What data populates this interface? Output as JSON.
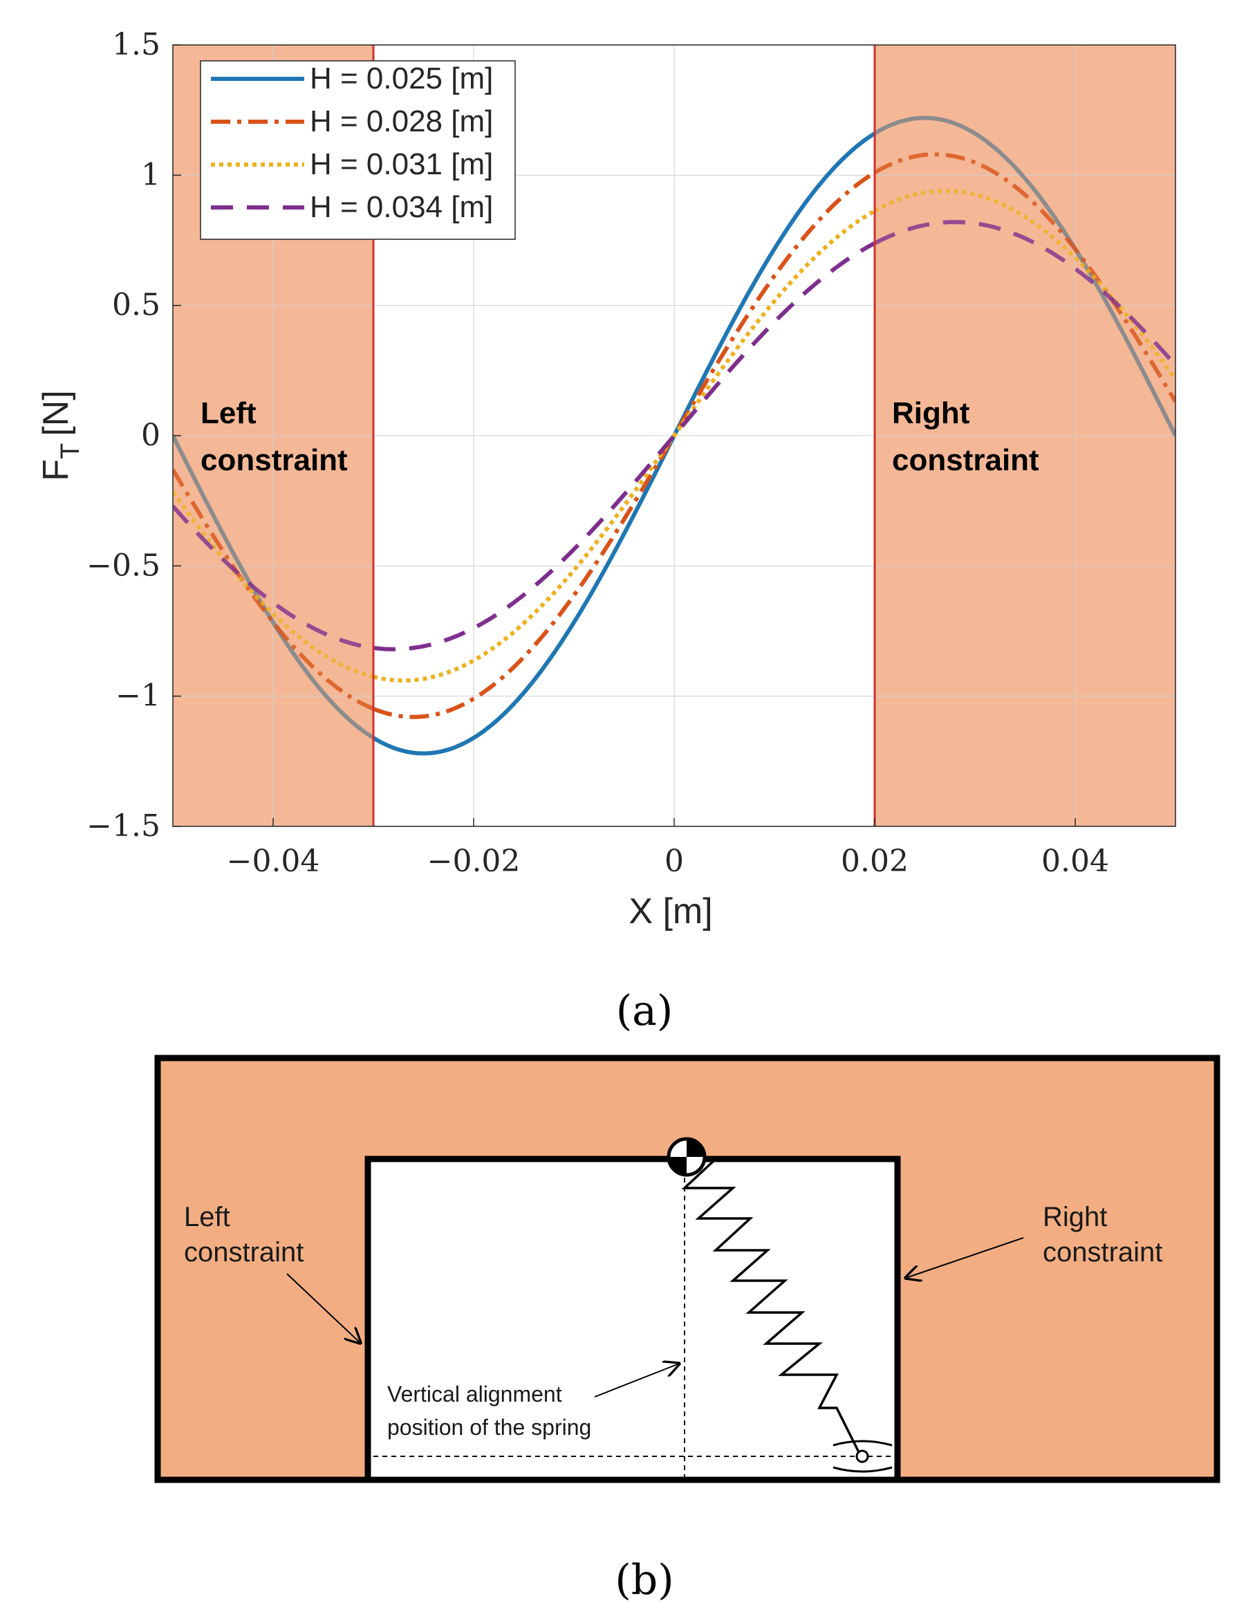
{
  "chart_data": {
    "type": "line",
    "xlabel": "X [m]",
    "ylabel_main": "F",
    "ylabel_sub": "T",
    "ylabel_unit": "[N]",
    "xlim": [
      -0.05,
      0.05
    ],
    "ylim": [
      -1.5,
      1.5
    ],
    "x_ticks": [
      -0.04,
      -0.02,
      0,
      0.02,
      0.04
    ],
    "x_tick_labels": [
      "−0.04",
      "−0.02",
      "0",
      "0.02",
      "0.04"
    ],
    "y_ticks": [
      -1.5,
      -1,
      -0.5,
      0,
      0.5,
      1,
      1.5
    ],
    "y_tick_labels": [
      "−1.5",
      "−1",
      "−0.5",
      "0",
      "0.5",
      "1",
      "1.5"
    ],
    "grid": true,
    "legend_position": "top-left",
    "constraints": {
      "left_x": -0.03,
      "right_x": 0.02,
      "left_label_1": "Left",
      "left_label_2": "constraint",
      "right_label_1": "Right",
      "right_label_2": "constraint"
    },
    "series": [
      {
        "name": "H = 0.025 [m]",
        "color": "#1f77b4",
        "style": "solid",
        "peak": 1.22,
        "peak_x": 0.025
      },
      {
        "name": "H = 0.028 [m]",
        "color": "#d95319",
        "style": "dashdot",
        "peak": 1.08,
        "peak_x": 0.026
      },
      {
        "name": "H = 0.031 [m]",
        "color": "#edb120",
        "style": "dotted",
        "peak": 0.94,
        "peak_x": 0.027
      },
      {
        "name": "H = 0.034 [m]",
        "color": "#7e2f8e",
        "style": "dashed",
        "peak": 0.82,
        "peak_x": 0.028
      }
    ],
    "outside_color": "#8c8c8c",
    "shade_color": "#f4b897",
    "constraint_line_color": "#d32f2f"
  },
  "caption_a": "(a)",
  "caption_b": "(b)",
  "diagram": {
    "left_label_1": "Left",
    "left_label_2": "constraint",
    "right_label_1": "Right",
    "right_label_2": "constraint",
    "note_1": "Vertical alignment",
    "note_2": "position of the spring",
    "frame_color": "#f2ae82"
  }
}
